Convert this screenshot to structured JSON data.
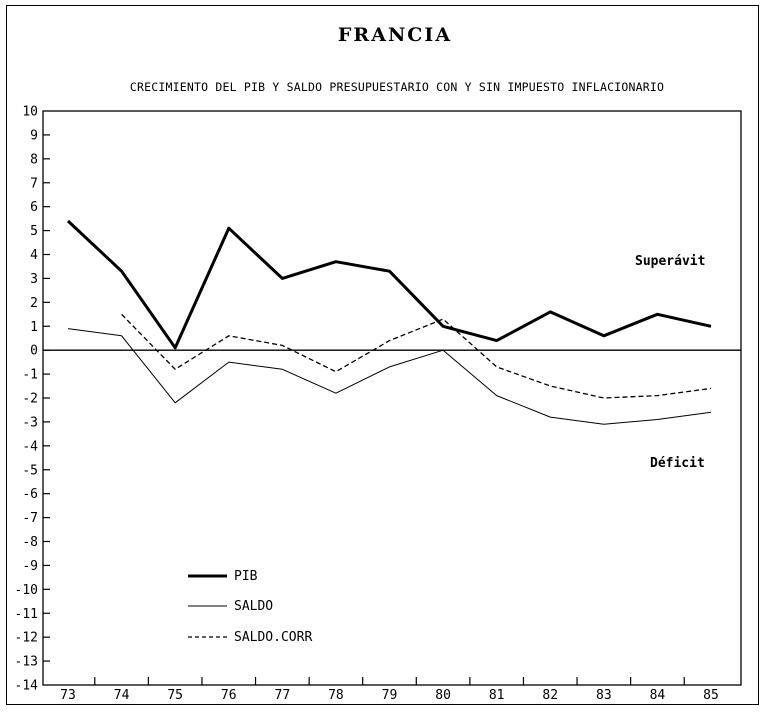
{
  "chart_data": {
    "type": "line",
    "title": "FRANCIA",
    "subtitle": "CRECIMIENTO DEL PIB Y SALDO PRESUPUESTARIO CON Y SIN IMPUESTO INFLACIONARIO",
    "x": [
      "73",
      "74",
      "75",
      "76",
      "77",
      "78",
      "79",
      "80",
      "81",
      "82",
      "83",
      "84",
      "85"
    ],
    "ylim": [
      -14,
      10
    ],
    "yticks": [
      "10",
      "9",
      "8",
      "7",
      "6",
      "5",
      "4",
      "3",
      "2",
      "1",
      "0",
      "-1",
      "-2",
      "-3",
      "-4",
      "-5",
      "-6",
      "-7",
      "-8",
      "-9",
      "-10",
      "-11",
      "-12",
      "-13",
      "-14"
    ],
    "series": [
      {
        "name": "PIB",
        "style": "solid-thick",
        "color": "#000000",
        "values": [
          5.4,
          3.3,
          0.1,
          5.1,
          3.0,
          3.7,
          3.3,
          1.0,
          0.4,
          1.6,
          0.6,
          1.5,
          1.0
        ]
      },
      {
        "name": "SALDO",
        "style": "solid-thin",
        "color": "#000000",
        "values": [
          0.9,
          0.6,
          -2.2,
          -0.5,
          -0.8,
          -1.8,
          -0.7,
          0.0,
          -1.9,
          -2.8,
          -3.1,
          -2.9,
          -2.6
        ]
      },
      {
        "name": "SALDO.CORR",
        "style": "dashed",
        "color": "#000000",
        "values": [
          null,
          1.5,
          -0.8,
          0.6,
          0.2,
          -0.9,
          0.4,
          1.3,
          -0.7,
          -1.5,
          -2.0,
          -1.9,
          -1.6
        ]
      }
    ],
    "annotations": {
      "surplus": "Superávit",
      "deficit": "Déficit"
    },
    "legend": {
      "placement": "bottom-left"
    },
    "grid": false
  }
}
